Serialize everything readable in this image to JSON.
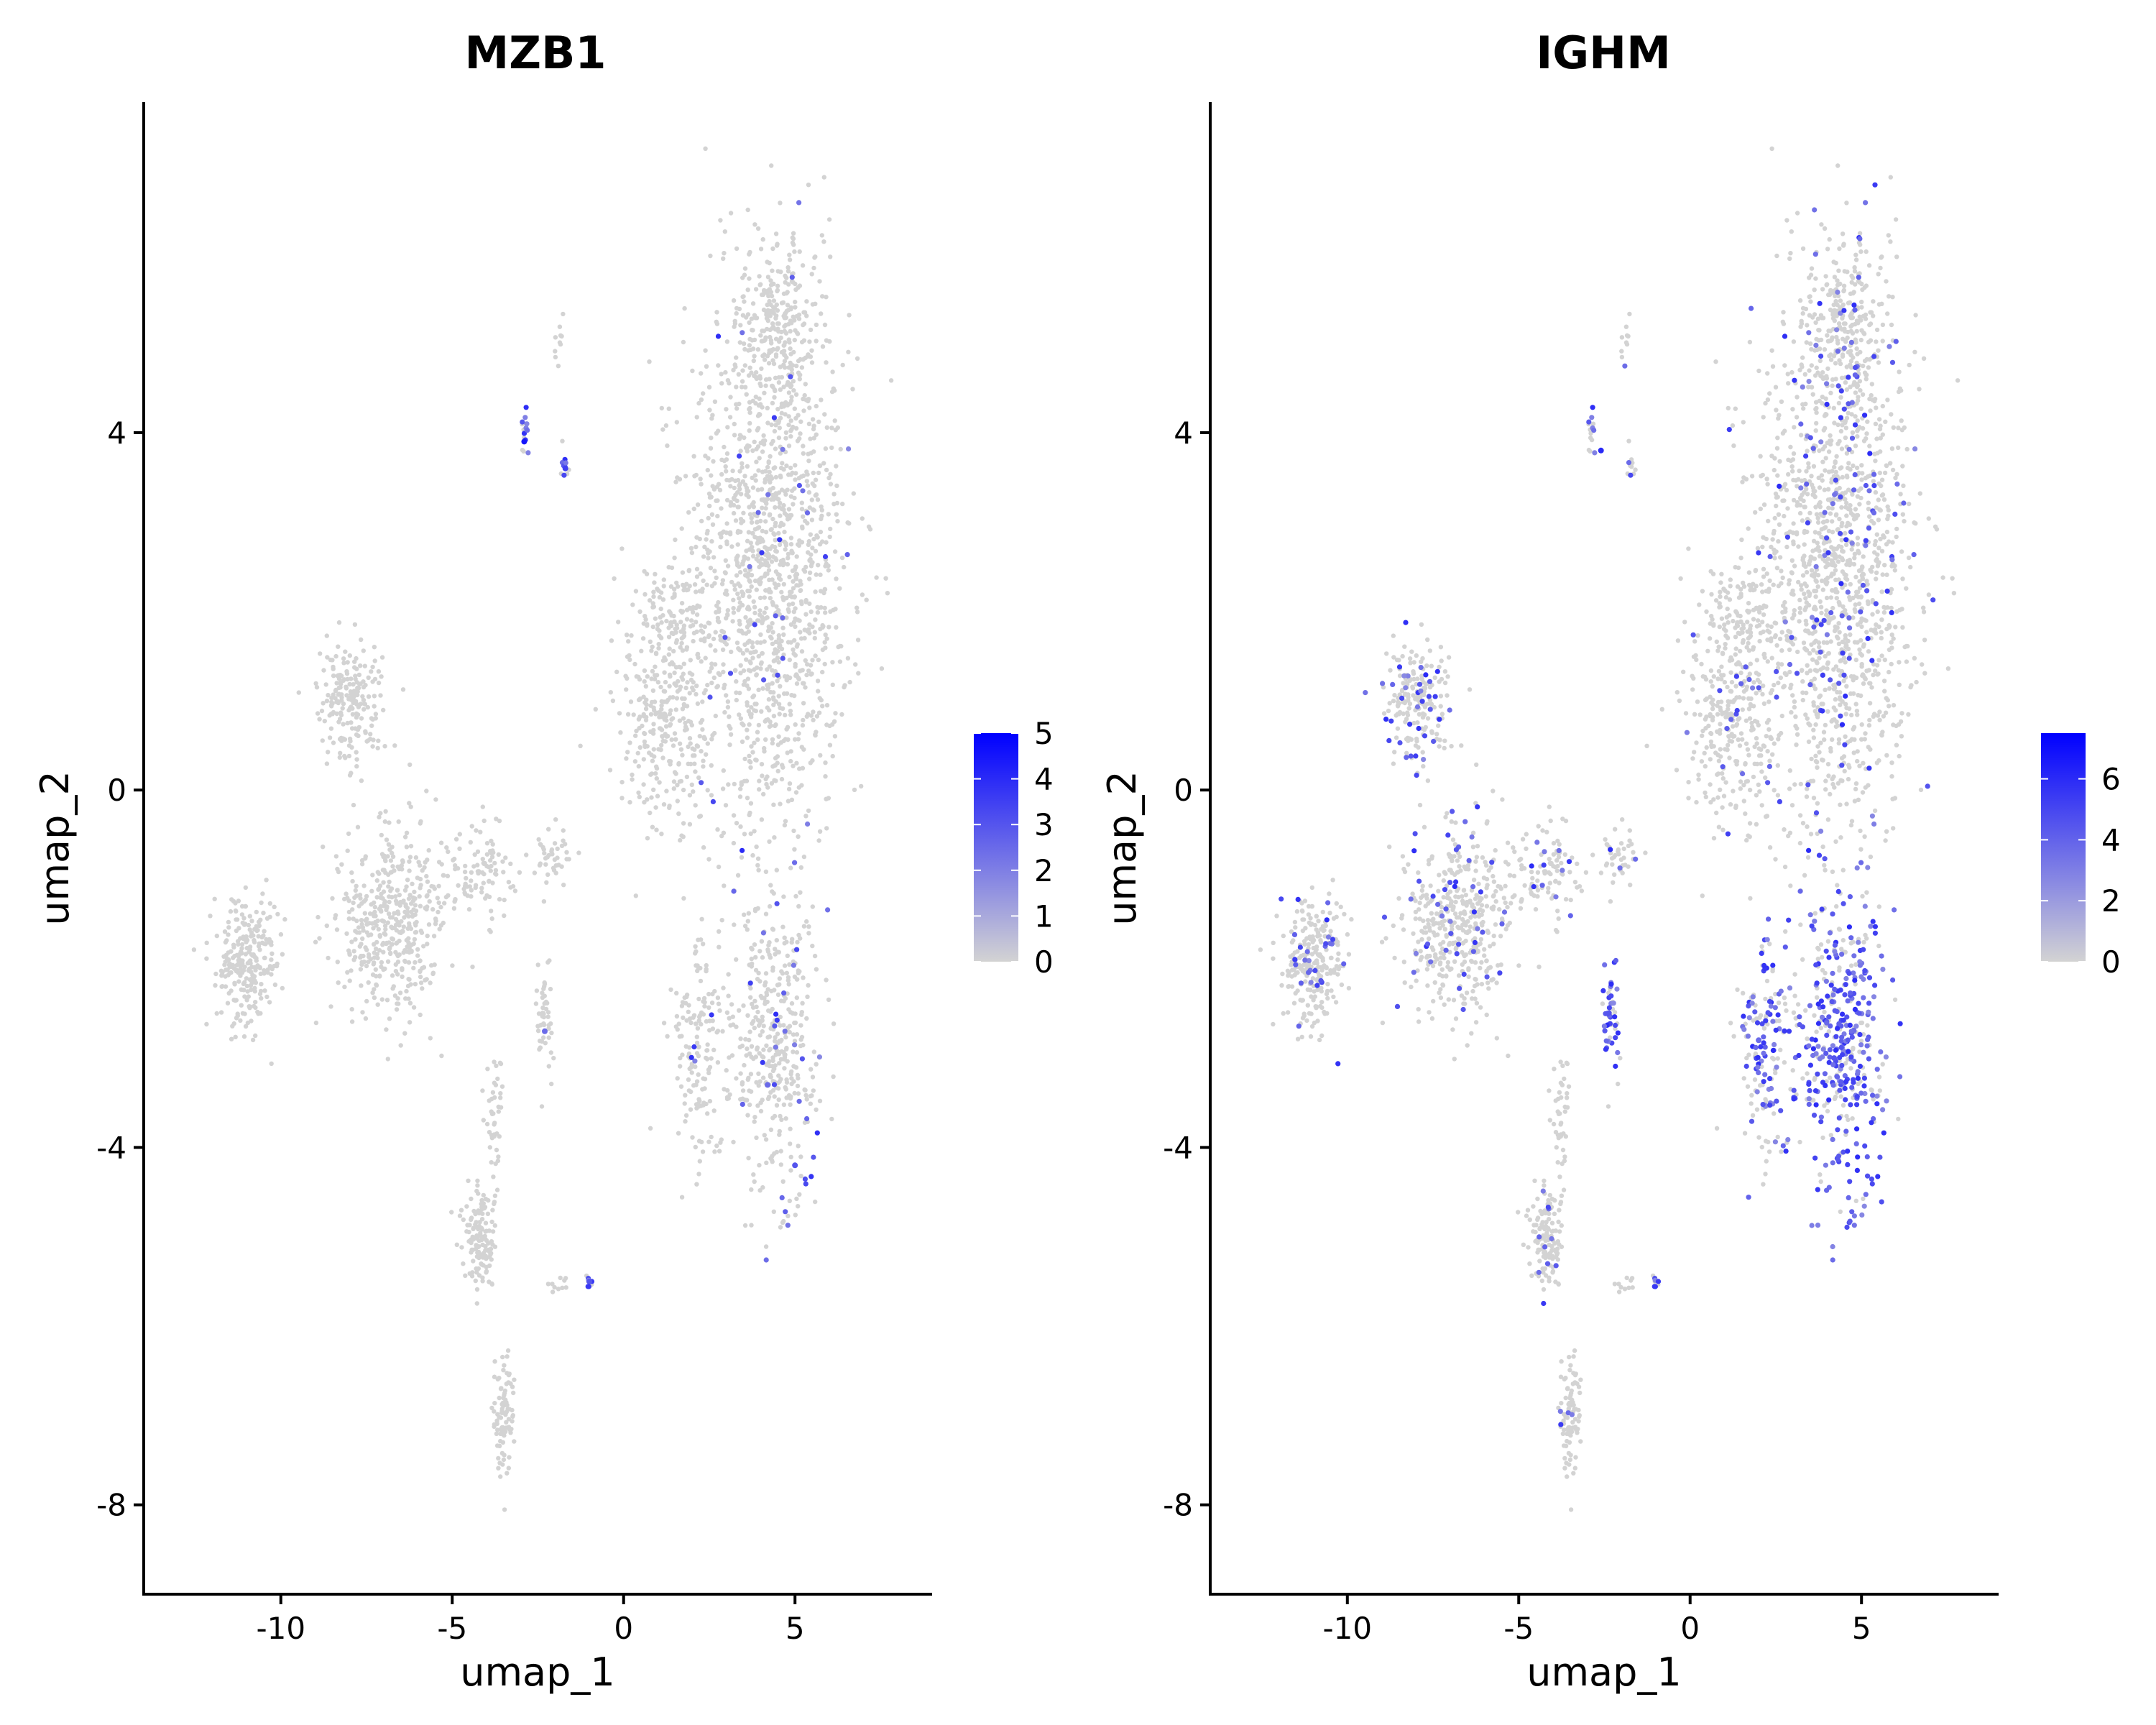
{
  "chart_data": [
    {
      "type": "scatter",
      "title": "MZB1",
      "xlabel": "umap_1",
      "ylabel": "umap_2",
      "xlim": [
        -14,
        9
      ],
      "ylim": [
        -9,
        7.7
      ],
      "x_ticks": [
        -10,
        -5,
        0,
        5
      ],
      "x_tick_labels": [
        "-10",
        "-5",
        "0",
        "5"
      ],
      "y_ticks": [
        -8,
        -4,
        0,
        4
      ],
      "y_tick_labels": [
        "-8",
        "-4",
        "0",
        "4"
      ],
      "legend": {
        "placement": "right",
        "min": 0,
        "max": 5,
        "ticks": [
          0,
          1,
          2,
          3,
          4,
          5
        ],
        "tick_labels": [
          "0",
          "1",
          "2",
          "3",
          "4",
          "5"
        ],
        "low_color": "#d3d3d3",
        "high_color": "#0000ff"
      },
      "expression_hotspots": [
        {
          "x": -2.9,
          "y": 3.9,
          "level": 0.9
        },
        {
          "x": -1.7,
          "y": 3.6,
          "level": 0.7
        },
        {
          "x": -2.3,
          "y": -2.7,
          "level": 0.5
        },
        {
          "x": 4.2,
          "y": -3.3,
          "level": 0.5
        },
        {
          "x": 5.0,
          "y": -4.2,
          "level": 0.6
        },
        {
          "x": -1.0,
          "y": -5.5,
          "level": 0.6
        }
      ]
    },
    {
      "type": "scatter",
      "title": "IGHM",
      "xlabel": "umap_1",
      "ylabel": "umap_2",
      "xlim": [
        -14,
        9
      ],
      "ylim": [
        -9,
        7.7
      ],
      "x_ticks": [
        -10,
        -5,
        0,
        5
      ],
      "x_tick_labels": [
        "-10",
        "-5",
        "0",
        "5"
      ],
      "y_ticks": [
        -8,
        -4,
        0,
        4
      ],
      "y_tick_labels": [
        "-8",
        "-4",
        "0",
        "4"
      ],
      "legend": {
        "placement": "right",
        "min": 0,
        "max": 7.5,
        "ticks": [
          0,
          2,
          4,
          6
        ],
        "tick_labels": [
          "0",
          "2",
          "4",
          "6"
        ],
        "low_color": "#d3d3d3",
        "high_color": "#0000ff"
      },
      "expression_hotspots": [
        {
          "x": 4.2,
          "y": -3.0,
          "level": 0.6
        },
        {
          "x": 2.0,
          "y": -2.8,
          "level": 0.5
        },
        {
          "x": -2.4,
          "y": -2.5,
          "level": 0.6
        },
        {
          "x": -2.6,
          "y": 3.8,
          "level": 0.8
        }
      ]
    }
  ],
  "cell_clusters": [
    {
      "cx": 4.2,
      "cy": 2.5,
      "sx": 2.0,
      "sy": 2.6,
      "n": 1400,
      "expr": [
        0.02,
        0.08
      ]
    },
    {
      "cx": 4.6,
      "cy": 5.2,
      "sx": 1.0,
      "sy": 0.9,
      "n": 250,
      "expr": [
        0.0,
        0.08
      ]
    },
    {
      "cx": 1.2,
      "cy": 0.8,
      "sx": 1.2,
      "sy": 1.1,
      "n": 300,
      "expr": [
        0.0,
        0.05
      ]
    },
    {
      "cx": 4.4,
      "cy": -2.8,
      "sx": 1.1,
      "sy": 1.3,
      "n": 420,
      "expr": [
        0.06,
        0.65
      ]
    },
    {
      "cx": 2.3,
      "cy": -2.9,
      "sx": 0.7,
      "sy": 1.0,
      "n": 160,
      "expr": [
        0.02,
        0.5
      ]
    },
    {
      "cx": -8.0,
      "cy": 1.0,
      "sx": 0.8,
      "sy": 0.6,
      "n": 200,
      "expr": [
        0.0,
        0.12
      ]
    },
    {
      "cx": -6.8,
      "cy": -1.5,
      "sx": 1.3,
      "sy": 0.9,
      "n": 450,
      "expr": [
        0.0,
        0.12
      ]
    },
    {
      "cx": -11.0,
      "cy": -1.9,
      "sx": 0.8,
      "sy": 0.6,
      "n": 260,
      "expr": [
        0.0,
        0.1
      ]
    },
    {
      "cx": -4.2,
      "cy": -0.9,
      "sx": 0.8,
      "sy": 0.4,
      "n": 100,
      "expr": [
        0.0,
        0.12
      ]
    },
    {
      "cx": -2.1,
      "cy": -0.7,
      "sx": 0.5,
      "sy": 0.3,
      "n": 40,
      "expr": [
        0.0,
        0.15
      ]
    },
    {
      "cx": -2.3,
      "cy": -2.6,
      "sx": 0.2,
      "sy": 0.5,
      "n": 50,
      "expr": [
        0.02,
        0.65
      ]
    },
    {
      "cx": -4.2,
      "cy": -5.0,
      "sx": 0.4,
      "sy": 0.5,
      "n": 140,
      "expr": [
        0.0,
        0.08
      ]
    },
    {
      "cx": -3.5,
      "cy": -7.0,
      "sx": 0.25,
      "sy": 0.6,
      "n": 90,
      "expr": [
        0.0,
        0.04
      ]
    },
    {
      "cx": -3.8,
      "cy": -3.7,
      "sx": 0.25,
      "sy": 0.6,
      "n": 40,
      "expr": [
        0.0,
        0.05
      ]
    },
    {
      "cx": -2.9,
      "cy": 4.0,
      "sx": 0.1,
      "sy": 0.2,
      "n": 14,
      "expr": [
        0.7,
        0.3
      ]
    },
    {
      "cx": -1.7,
      "cy": 3.6,
      "sx": 0.1,
      "sy": 0.2,
      "n": 10,
      "expr": [
        0.5,
        0.2
      ]
    },
    {
      "cx": -1.9,
      "cy": 5.0,
      "sx": 0.15,
      "sy": 0.3,
      "n": 10,
      "expr": [
        0.0,
        0.05
      ]
    },
    {
      "cx": -1.0,
      "cy": -5.5,
      "sx": 0.1,
      "sy": 0.08,
      "n": 8,
      "expr": [
        0.5,
        0.4
      ]
    },
    {
      "cx": -1.8,
      "cy": -5.5,
      "sx": 0.3,
      "sy": 0.1,
      "n": 10,
      "expr": [
        0.0,
        0.05
      ]
    },
    {
      "cx": 1.5,
      "cy": 2.0,
      "sx": 1.0,
      "sy": 0.5,
      "n": 90,
      "expr": [
        0.0,
        0.05
      ]
    }
  ]
}
